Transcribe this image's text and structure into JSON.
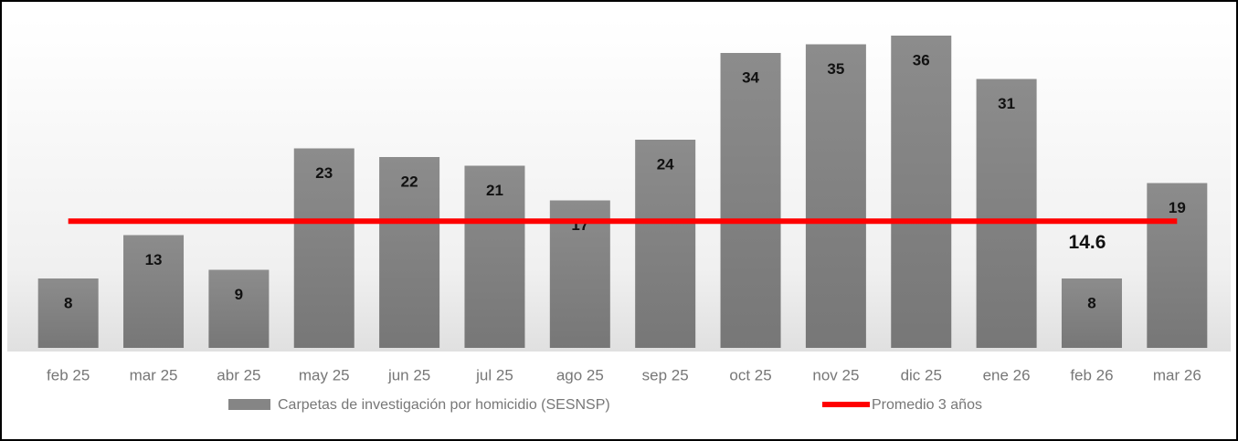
{
  "chart_data": {
    "type": "bar",
    "categories": [
      "feb 25",
      "mar 25",
      "abr 25",
      "may 25",
      "jun 25",
      "jul 25",
      "ago 25",
      "sep 25",
      "oct 25",
      "nov 25",
      "dic 25",
      "ene 26",
      "feb 26",
      "mar 26"
    ],
    "series": [
      {
        "name": "Carpetas de investigación por homicidio (SESNSP)",
        "type": "bar",
        "color": "#858585",
        "values": [
          8,
          13,
          9,
          23,
          22,
          21,
          17,
          24,
          34,
          35,
          36,
          31,
          8,
          19
        ]
      },
      {
        "name": "Promedio 3 años",
        "type": "line",
        "color": "#ff0000",
        "values": [
          14.6,
          14.6,
          14.6,
          14.6,
          14.6,
          14.6,
          14.6,
          14.6,
          14.6,
          14.6,
          14.6,
          14.6,
          14.6,
          14.6
        ]
      }
    ],
    "ylim": [
      0,
      38
    ],
    "legend": "bottom"
  }
}
